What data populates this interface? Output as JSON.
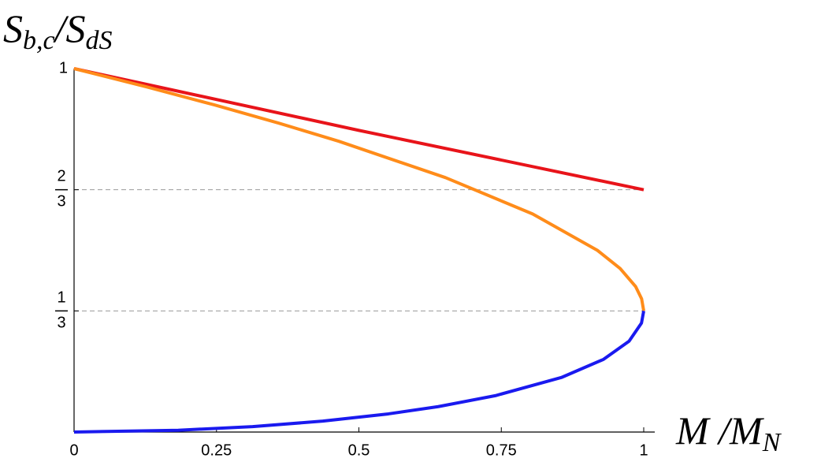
{
  "chart_data": {
    "type": "line",
    "ylabel": "S_{b,c}/S_{dS}",
    "xlabel": "M /M_{N}",
    "xlim": [
      0,
      1
    ],
    "ylim": [
      0,
      1
    ],
    "xticks": [
      0,
      0.25,
      0.5,
      0.75,
      1
    ],
    "yticks": [
      {
        "value": 0.3333,
        "label": "1/3"
      },
      {
        "value": 0.6667,
        "label": "2/3"
      },
      1
    ],
    "dashed_lines": [
      0.3333,
      0.6667
    ],
    "series": [
      {
        "color": "#e8141a",
        "x": [
          0,
          0.5,
          1
        ],
        "values": [
          1,
          0.83,
          0.6667
        ]
      },
      {
        "color": "#ff8c1a",
        "x": [
          0,
          0.1266,
          0.2465,
          0.3593,
          0.4648,
          0.6521,
          0.805,
          0.9186,
          0.9586,
          0.9859,
          0.9963,
          1
        ],
        "values": [
          1,
          0.95,
          0.9,
          0.85,
          0.8,
          0.7,
          0.6,
          0.5,
          0.45,
          0.4,
          0.3667,
          0.3333
        ]
      },
      {
        "color": "#1a1aef",
        "x": [
          1,
          0.9961,
          0.9743,
          0.9295,
          0.8553,
          0.7394,
          0.6393,
          0.5519,
          0.4365,
          0.3134,
          0.1828,
          0
        ],
        "values": [
          0.3333,
          0.3,
          0.25,
          0.2,
          0.15,
          0.1,
          0.07,
          0.05,
          0.03,
          0.015,
          0.005,
          0
        ]
      }
    ]
  }
}
